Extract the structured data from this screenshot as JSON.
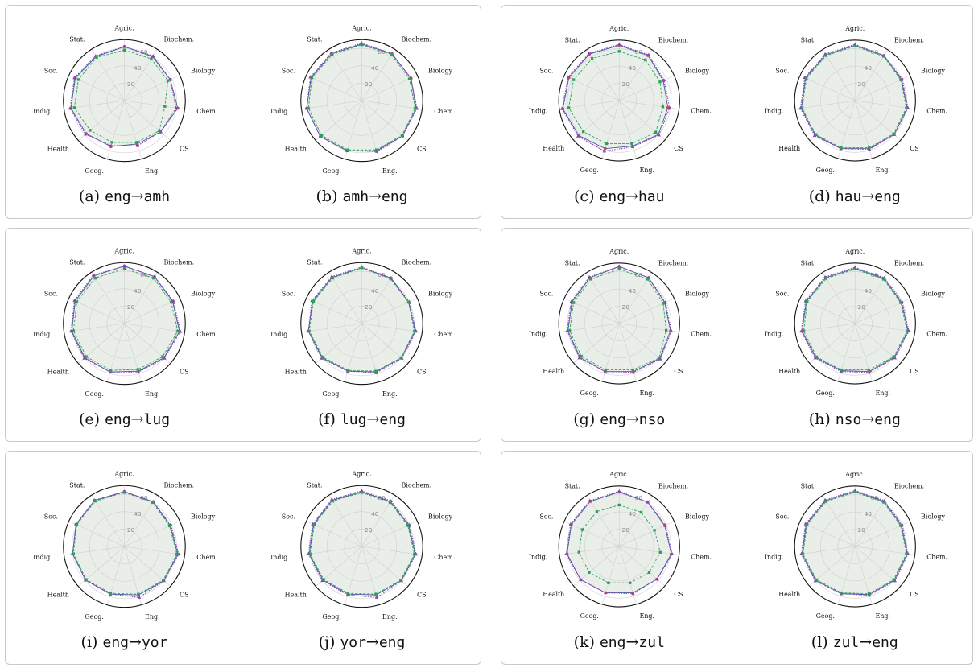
{
  "chart_data": [
    {
      "type": "radar",
      "caption": {
        "prefix": "(a)",
        "src": "eng",
        "arrow": "→",
        "tgt": "amh"
      },
      "categories": [
        "Agric.",
        "Biochem.",
        "Biology",
        "Chem.",
        "CS",
        "Eng.",
        "Geog.",
        "Health",
        "Indig.",
        "Soc.",
        "Stat."
      ],
      "rlim": [
        0,
        70
      ],
      "rticks": [
        20,
        40,
        60
      ],
      "series": [
        {
          "values": [
            62,
            60,
            58,
            62,
            55,
            52,
            55,
            58,
            62,
            62,
            60
          ]
        },
        {
          "values": [
            62,
            61,
            58,
            60,
            55,
            54,
            54,
            59,
            63,
            63,
            61
          ]
        },
        {
          "values": [
            58,
            57,
            55,
            47,
            53,
            50,
            50,
            52,
            58,
            58,
            59
          ]
        }
      ]
    },
    {
      "type": "radar",
      "caption": {
        "prefix": "(b)",
        "src": "amh",
        "arrow": "→",
        "tgt": "eng"
      },
      "categories": [
        "Agric.",
        "Biochem.",
        "Biology",
        "Chem.",
        "CS",
        "Eng.",
        "Geog.",
        "Health",
        "Indig.",
        "Soc.",
        "Stat."
      ],
      "rlim": [
        0,
        70
      ],
      "rticks": [
        20,
        40,
        60
      ],
      "series": [
        {
          "values": [
            65,
            64,
            62,
            63,
            62,
            60,
            60,
            63,
            64,
            64,
            64
          ]
        },
        {
          "values": [
            66,
            64,
            62,
            64,
            62,
            61,
            60,
            63,
            64,
            65,
            65
          ]
        },
        {
          "values": [
            64,
            63,
            60,
            62,
            61,
            59,
            59,
            61,
            62,
            63,
            63
          ]
        }
      ]
    },
    {
      "type": "radar",
      "caption": {
        "prefix": "(c)",
        "src": "eng",
        "arrow": "→",
        "tgt": "hau"
      },
      "categories": [
        "Agric.",
        "Biochem.",
        "Biology",
        "Chem.",
        "CS",
        "Eng.",
        "Geog.",
        "Health",
        "Indig.",
        "Soc.",
        "Stat."
      ],
      "rlim": [
        0,
        70
      ],
      "rticks": [
        20,
        40,
        60
      ],
      "series": [
        {
          "values": [
            64,
            62,
            56,
            57,
            60,
            55,
            58,
            62,
            66,
            64,
            64
          ]
        },
        {
          "values": [
            65,
            63,
            57,
            59,
            61,
            56,
            61,
            63,
            67,
            65,
            65
          ]
        },
        {
          "values": [
            57,
            56,
            52,
            51,
            56,
            52,
            52,
            55,
            59,
            58,
            58
          ]
        }
      ]
    },
    {
      "type": "radar",
      "caption": {
        "prefix": "(d)",
        "src": "hau",
        "arrow": "→",
        "tgt": "eng"
      },
      "categories": [
        "Agric.",
        "Biochem.",
        "Biology",
        "Chem.",
        "CS",
        "Eng.",
        "Geog.",
        "Health",
        "Indig.",
        "Soc.",
        "Stat."
      ],
      "rlim": [
        0,
        70
      ],
      "rticks": [
        20,
        40,
        60
      ],
      "series": [
        {
          "values": [
            64,
            62,
            59,
            61,
            60,
            58,
            58,
            61,
            63,
            63,
            63
          ]
        },
        {
          "values": [
            65,
            62,
            60,
            62,
            60,
            59,
            58,
            62,
            64,
            64,
            64
          ]
        },
        {
          "values": [
            63,
            61,
            58,
            60,
            59,
            57,
            57,
            60,
            62,
            62,
            62
          ]
        }
      ]
    },
    {
      "type": "radar",
      "caption": {
        "prefix": "(e)",
        "src": "eng",
        "arrow": "→",
        "tgt": "lug"
      },
      "categories": [
        "Agric.",
        "Biochem.",
        "Biology",
        "Chem.",
        "CS",
        "Eng.",
        "Geog.",
        "Health",
        "Indig.",
        "Soc.",
        "Stat."
      ],
      "rlim": [
        0,
        70
      ],
      "rticks": [
        20,
        40,
        60
      ],
      "series": [
        {
          "values": [
            66,
            64,
            61,
            64,
            60,
            57,
            58,
            60,
            61,
            62,
            65
          ]
        },
        {
          "values": [
            66,
            64,
            62,
            65,
            61,
            58,
            58,
            61,
            62,
            63,
            66
          ]
        },
        {
          "values": [
            63,
            62,
            59,
            62,
            58,
            55,
            56,
            58,
            59,
            60,
            62
          ]
        }
      ]
    },
    {
      "type": "radar",
      "caption": {
        "prefix": "(f)",
        "src": "lug",
        "arrow": "→",
        "tgt": "eng"
      },
      "categories": [
        "Agric.",
        "Biochem.",
        "Biology",
        "Chem.",
        "CS",
        "Eng.",
        "Geog.",
        "Health",
        "Indig.",
        "Soc.",
        "Stat."
      ],
      "rlim": [
        0,
        70
      ],
      "rticks": [
        20,
        40,
        60
      ],
      "series": [
        {
          "values": [
            64,
            62,
            59,
            62,
            60,
            58,
            57,
            60,
            62,
            62,
            63
          ]
        },
        {
          "values": [
            65,
            62,
            60,
            63,
            61,
            59,
            57,
            61,
            62,
            63,
            64
          ]
        },
        {
          "values": [
            64,
            61,
            59,
            61,
            60,
            57,
            56,
            59,
            61,
            61,
            62
          ]
        }
      ]
    },
    {
      "type": "radar",
      "caption": {
        "prefix": "(g)",
        "src": "eng",
        "arrow": "→",
        "tgt": "nso"
      },
      "categories": [
        "Agric.",
        "Biochem.",
        "Biology",
        "Chem.",
        "CS",
        "Eng.",
        "Geog.",
        "Health",
        "Indig.",
        "Soc.",
        "Stat."
      ],
      "rlim": [
        0,
        70
      ],
      "rticks": [
        20,
        40,
        60
      ],
      "series": [
        {
          "values": [
            66,
            63,
            58,
            60,
            62,
            58,
            58,
            60,
            60,
            60,
            63
          ]
        },
        {
          "values": [
            66,
            63,
            59,
            61,
            63,
            59,
            58,
            61,
            61,
            61,
            64
          ]
        },
        {
          "values": [
            63,
            61,
            56,
            55,
            61,
            56,
            56,
            58,
            58,
            58,
            61
          ]
        }
      ]
    },
    {
      "type": "radar",
      "caption": {
        "prefix": "(h)",
        "src": "nso",
        "arrow": "→",
        "tgt": "eng"
      },
      "categories": [
        "Agric.",
        "Biochem.",
        "Biology",
        "Chem.",
        "CS",
        "Eng.",
        "Geog.",
        "Health",
        "Indig.",
        "Soc.",
        "Stat."
      ],
      "rlim": [
        0,
        70
      ],
      "rticks": [
        20,
        40,
        60
      ],
      "series": [
        {
          "values": [
            64,
            62,
            59,
            62,
            60,
            58,
            57,
            60,
            62,
            62,
            63
          ]
        },
        {
          "values": [
            65,
            63,
            60,
            63,
            61,
            59,
            58,
            61,
            63,
            63,
            64
          ]
        },
        {
          "values": [
            63,
            61,
            58,
            61,
            59,
            56,
            56,
            59,
            60,
            61,
            62
          ]
        }
      ]
    },
    {
      "type": "radar",
      "caption": {
        "prefix": "(i)",
        "src": "eng",
        "arrow": "→",
        "tgt": "yor"
      },
      "categories": [
        "Agric.",
        "Biochem.",
        "Biology",
        "Chem.",
        "CS",
        "Eng.",
        "Geog.",
        "Health",
        "Indig.",
        "Soc.",
        "Stat."
      ],
      "rlim": [
        0,
        70
      ],
      "rticks": [
        20,
        40,
        60
      ],
      "series": [
        {
          "values": [
            63,
            61,
            58,
            62,
            60,
            58,
            57,
            59,
            60,
            61,
            63
          ]
        },
        {
          "values": [
            63,
            61,
            59,
            63,
            60,
            61,
            57,
            59,
            60,
            61,
            63
          ]
        },
        {
          "values": [
            62,
            60,
            57,
            61,
            59,
            57,
            56,
            58,
            59,
            60,
            62
          ]
        }
      ]
    },
    {
      "type": "radar",
      "caption": {
        "prefix": "(j)",
        "src": "yor",
        "arrow": "→",
        "tgt": "eng"
      },
      "categories": [
        "Agric.",
        "Biochem.",
        "Biology",
        "Chem.",
        "CS",
        "Eng.",
        "Geog.",
        "Health",
        "Indig.",
        "Soc.",
        "Stat."
      ],
      "rlim": [
        0,
        70
      ],
      "rticks": [
        20,
        40,
        60
      ],
      "series": [
        {
          "values": [
            63,
            61,
            59,
            62,
            60,
            58,
            57,
            59,
            61,
            61,
            63
          ]
        },
        {
          "values": [
            64,
            62,
            60,
            63,
            60,
            61,
            58,
            60,
            62,
            62,
            64
          ]
        },
        {
          "values": [
            62,
            60,
            58,
            61,
            59,
            57,
            56,
            58,
            60,
            60,
            62
          ]
        }
      ]
    },
    {
      "type": "radar",
      "caption": {
        "prefix": "(k)",
        "src": "eng",
        "arrow": "→",
        "tgt": "zul"
      },
      "categories": [
        "Agric.",
        "Biochem.",
        "Biology",
        "Chem.",
        "CS",
        "Eng.",
        "Geog.",
        "Health",
        "Indig.",
        "Soc.",
        "Stat."
      ],
      "rlim": [
        0,
        70
      ],
      "rticks": [
        20,
        40,
        60
      ],
      "series": [
        {
          "values": [
            63,
            61,
            58,
            61,
            58,
            56,
            56,
            59,
            61,
            61,
            62
          ]
        },
        {
          "values": [
            64,
            61,
            59,
            62,
            58,
            57,
            56,
            59,
            62,
            62,
            63
          ]
        },
        {
          "values": [
            48,
            47,
            45,
            48,
            46,
            44,
            44,
            46,
            47,
            47,
            48
          ]
        }
      ]
    },
    {
      "type": "radar",
      "caption": {
        "prefix": "(l)",
        "src": "zul",
        "arrow": "→",
        "tgt": "eng"
      },
      "categories": [
        "Agric.",
        "Biochem.",
        "Biology",
        "Chem.",
        "CS",
        "Eng.",
        "Geog.",
        "Health",
        "Indig.",
        "Soc.",
        "Stat."
      ],
      "rlim": [
        0,
        70
      ],
      "rticks": [
        20,
        40,
        60
      ],
      "series": [
        {
          "values": [
            64,
            62,
            59,
            61,
            60,
            58,
            57,
            60,
            62,
            62,
            63
          ]
        },
        {
          "values": [
            65,
            63,
            60,
            62,
            61,
            59,
            57,
            61,
            63,
            63,
            64
          ]
        },
        {
          "values": [
            63,
            61,
            58,
            60,
            59,
            57,
            56,
            59,
            61,
            61,
            62
          ]
        }
      ]
    }
  ],
  "style": {
    "series_colors": [
      "#3c5a9a",
      "#8b3fb8",
      "#2aa05a"
    ],
    "marker_colors": [
      "#c0504d",
      "#8b3fb8",
      "#2aa05a"
    ],
    "fill_color": "#e9eee9",
    "grid_color": "#cfcfcf"
  }
}
